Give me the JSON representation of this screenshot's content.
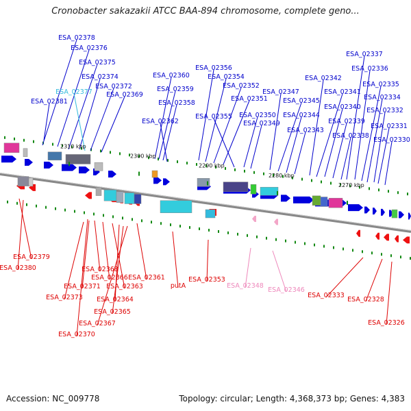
{
  "title": "Cronobacter sakazakii ATCC BAA-894 chromosome, complete geno...",
  "footer": {
    "accession": "Accession: NC_009778",
    "summary": "Topology: circular; Length: 4,368,373 bp; Genes: 4,383"
  },
  "colors": {
    "forward_label": "#0000cc",
    "reverse_label": "#dd0000",
    "highlight_label": "#33bbdd",
    "pseudo_label": "#ee88bb",
    "axis": "#888888",
    "tick": "#118811"
  },
  "kbp_marks": [
    "2310 kbp",
    "2300 kbp",
    "2290 kbp",
    "2280 kbp",
    "2270 kbp"
  ],
  "forward_genes": [
    {
      "label": "ESA_02378",
      "color": "#0000cc"
    },
    {
      "label": "ESA_02376",
      "color": "#0000cc"
    },
    {
      "label": "ESA_02375",
      "color": "#0000cc"
    },
    {
      "label": "ESA_02374",
      "color": "#0000cc"
    },
    {
      "label": "ESA_02372",
      "color": "#0000cc"
    },
    {
      "label": "ESA_02377",
      "color": "#33bbdd"
    },
    {
      "label": "ESA_02369",
      "color": "#0000cc"
    },
    {
      "label": "ESA_02381",
      "color": "#0000cc"
    },
    {
      "label": "ESA_02360",
      "color": "#0000cc"
    },
    {
      "label": "ESA_02359",
      "color": "#0000cc"
    },
    {
      "label": "ESA_02358",
      "color": "#0000cc"
    },
    {
      "label": "ESA_02362",
      "color": "#0000cc"
    },
    {
      "label": "ESA_02356",
      "color": "#0000cc"
    },
    {
      "label": "ESA_02354",
      "color": "#0000cc"
    },
    {
      "label": "ESA_02352",
      "color": "#0000cc"
    },
    {
      "label": "ESA_02351",
      "color": "#0000cc"
    },
    {
      "label": "ESA_02355",
      "color": "#0000cc"
    },
    {
      "label": "ESA_02350",
      "color": "#0000cc"
    },
    {
      "label": "ESA_02349",
      "color": "#0000cc"
    },
    {
      "label": "ESA_02347",
      "color": "#0000cc"
    },
    {
      "label": "ESA_02345",
      "color": "#0000cc"
    },
    {
      "label": "ESA_02344",
      "color": "#0000cc"
    },
    {
      "label": "ESA_02343",
      "color": "#0000cc"
    },
    {
      "label": "ESA_02342",
      "color": "#0000cc"
    },
    {
      "label": "ESA_02341",
      "color": "#0000cc"
    },
    {
      "label": "ESA_02340",
      "color": "#0000cc"
    },
    {
      "label": "ESA_02339",
      "color": "#0000cc"
    },
    {
      "label": "ESA_02338",
      "color": "#0000cc"
    },
    {
      "label": "ESA_02337",
      "color": "#0000cc"
    },
    {
      "label": "ESA_02336",
      "color": "#0000cc"
    },
    {
      "label": "ESA_02335",
      "color": "#0000cc"
    },
    {
      "label": "ESA_02334",
      "color": "#0000cc"
    },
    {
      "label": "ESA_02332",
      "color": "#0000cc"
    },
    {
      "label": "ESA_02331",
      "color": "#0000cc"
    },
    {
      "label": "ESA_02330",
      "color": "#0000cc"
    }
  ],
  "reverse_genes": [
    {
      "label": "ESA_02379",
      "color": "#dd0000"
    },
    {
      "label": "ESA_02380",
      "color": "#dd0000"
    },
    {
      "label": "ESA_02368",
      "color": "#dd0000"
    },
    {
      "label": "ESA_02371",
      "color": "#dd0000"
    },
    {
      "label": "ESA_02366",
      "color": "#dd0000"
    },
    {
      "label": "ESA_02373",
      "color": "#dd0000"
    },
    {
      "label": "ESA_02363",
      "color": "#dd0000"
    },
    {
      "label": "ESA_02361",
      "color": "#dd0000"
    },
    {
      "label": "ESA_02364",
      "color": "#dd0000"
    },
    {
      "label": "ESA_02365",
      "color": "#dd0000"
    },
    {
      "label": "ESA_02367",
      "color": "#dd0000"
    },
    {
      "label": "ESA_02370",
      "color": "#dd0000"
    },
    {
      "label": "putA",
      "color": "#dd0000"
    },
    {
      "label": "ESA_02353",
      "color": "#dd0000"
    },
    {
      "label": "ESA_02348",
      "color": "#ee88bb"
    },
    {
      "label": "ESA_02346",
      "color": "#ee88bb"
    },
    {
      "label": "ESA_02333",
      "color": "#dd0000"
    },
    {
      "label": "ESA_02328",
      "color": "#dd0000"
    },
    {
      "label": "ESA_02326",
      "color": "#dd0000"
    }
  ]
}
